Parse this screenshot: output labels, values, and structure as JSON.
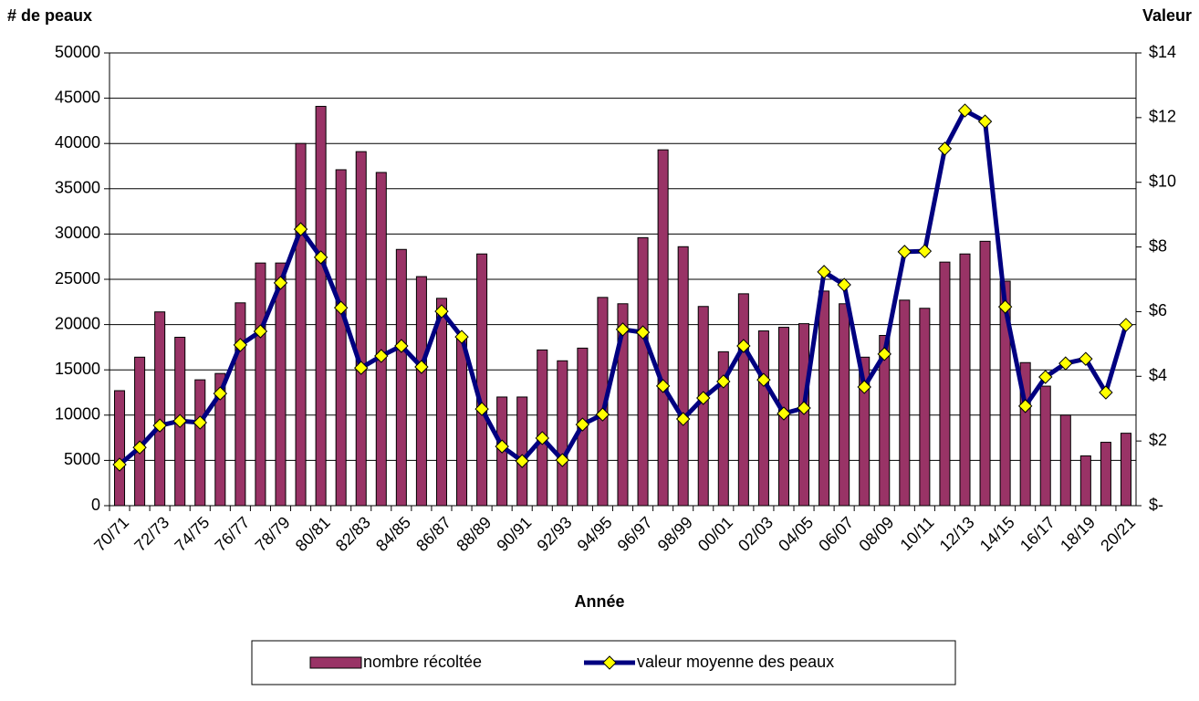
{
  "chart_data": {
    "type": "bar-line",
    "y_label": "# de peaux",
    "y2_label": "Valeur",
    "x_label": "Année",
    "categories": [
      "70/71",
      null,
      "72/73",
      null,
      "74/75",
      null,
      "76/77",
      null,
      "78/79",
      null,
      "80/81",
      null,
      "82/83",
      null,
      "84/85",
      null,
      "86/87",
      null,
      "88/89",
      null,
      "90/91",
      null,
      "92/93",
      null,
      "94/95",
      null,
      "96/97",
      null,
      "98/99",
      null,
      "00/01",
      null,
      "02/03",
      null,
      "04/05",
      null,
      "06/07",
      null,
      "08/09",
      null,
      "10/11",
      null,
      "12/13",
      null,
      "14/15",
      null,
      "16/17",
      null,
      "18/19",
      null,
      "20/21"
    ],
    "series": [
      {
        "name": "nombre récoltée",
        "type": "bar",
        "color": "#993366",
        "values": [
          12700,
          16400,
          21400,
          18600,
          13900,
          14600,
          22400,
          26800,
          26800,
          40000,
          44100,
          37100,
          39100,
          36800,
          28300,
          25300,
          22900,
          18500,
          27800,
          12000,
          12000,
          17200,
          16000,
          17400,
          23000,
          22300,
          29600,
          39300,
          28600,
          22000,
          17000,
          23400,
          19300,
          19700,
          20100,
          23700,
          22300,
          16400,
          18800,
          22700,
          21800,
          26900,
          27800,
          29200,
          24800,
          15800,
          13200,
          10000,
          5500,
          7000,
          8000
        ]
      },
      {
        "name": "valeur moyenne des peaux",
        "type": "line",
        "axis": "y2",
        "color": "#000080",
        "marker_color": "#ffff00",
        "values": [
          1.27,
          1.8,
          2.48,
          2.62,
          2.57,
          3.47,
          4.97,
          5.39,
          6.89,
          8.55,
          7.68,
          6.12,
          4.26,
          4.63,
          4.94,
          4.29,
          6.01,
          5.22,
          2.99,
          1.83,
          1.38,
          2.09,
          1.41,
          2.51,
          2.82,
          5.45,
          5.36,
          3.7,
          2.68,
          3.33,
          3.84,
          4.94,
          3.89,
          2.85,
          3.02,
          7.23,
          6.83,
          3.67,
          4.69,
          7.85,
          7.87,
          11.04,
          12.22,
          11.88,
          6.15,
          3.08,
          3.98,
          4.4,
          4.54,
          3.5,
          5.59
        ]
      }
    ],
    "ylim": [
      0,
      50000
    ],
    "yticks": [
      0,
      5000,
      10000,
      15000,
      20000,
      25000,
      30000,
      35000,
      40000,
      45000,
      50000
    ],
    "y2lim": [
      0,
      14
    ],
    "y2ticks": [
      {
        "value": 0,
        "label": "$-"
      },
      {
        "value": 2,
        "label": "$2"
      },
      {
        "value": 4,
        "label": "$4"
      },
      {
        "value": 6,
        "label": "$6"
      },
      {
        "value": 8,
        "label": "$8"
      },
      {
        "value": 10,
        "label": "$10"
      },
      {
        "value": 12,
        "label": "$12"
      },
      {
        "value": 14,
        "label": "$14"
      }
    ],
    "grid": true,
    "legend": "bottom"
  }
}
